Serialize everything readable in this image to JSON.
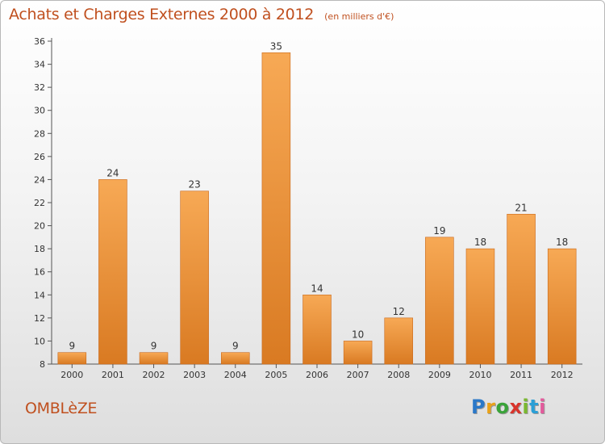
{
  "title": "Achats et Charges Externes 2000 à 2012",
  "subtitle": "(en milliers d'€)",
  "commune": "OMBLèZE",
  "brand": {
    "letters": [
      "P",
      "r",
      "o",
      "x",
      "i",
      "t",
      "i"
    ],
    "colors": [
      "#2a78c8",
      "#e9a21a",
      "#3aa33a",
      "#d8342c",
      "#7ab82f",
      "#2a9fd6",
      "#e35a9c"
    ]
  },
  "colors": {
    "accent": "#c0501f",
    "bar_top": "#f7a955",
    "bar_bottom": "#d97a22"
  },
  "chart_data": {
    "type": "bar",
    "categories": [
      "2000",
      "2001",
      "2002",
      "2003",
      "2004",
      "2005",
      "2006",
      "2007",
      "2008",
      "2009",
      "2010",
      "2011",
      "2012"
    ],
    "values": [
      9,
      24,
      9,
      23,
      9,
      35,
      14,
      10,
      12,
      19,
      18,
      21,
      18
    ],
    "ylim": [
      8,
      36
    ],
    "yticks": [
      8,
      10,
      12,
      14,
      16,
      18,
      20,
      22,
      24,
      26,
      28,
      30,
      32,
      34,
      36
    ],
    "grid": false,
    "xlabel": "",
    "ylabel": ""
  }
}
